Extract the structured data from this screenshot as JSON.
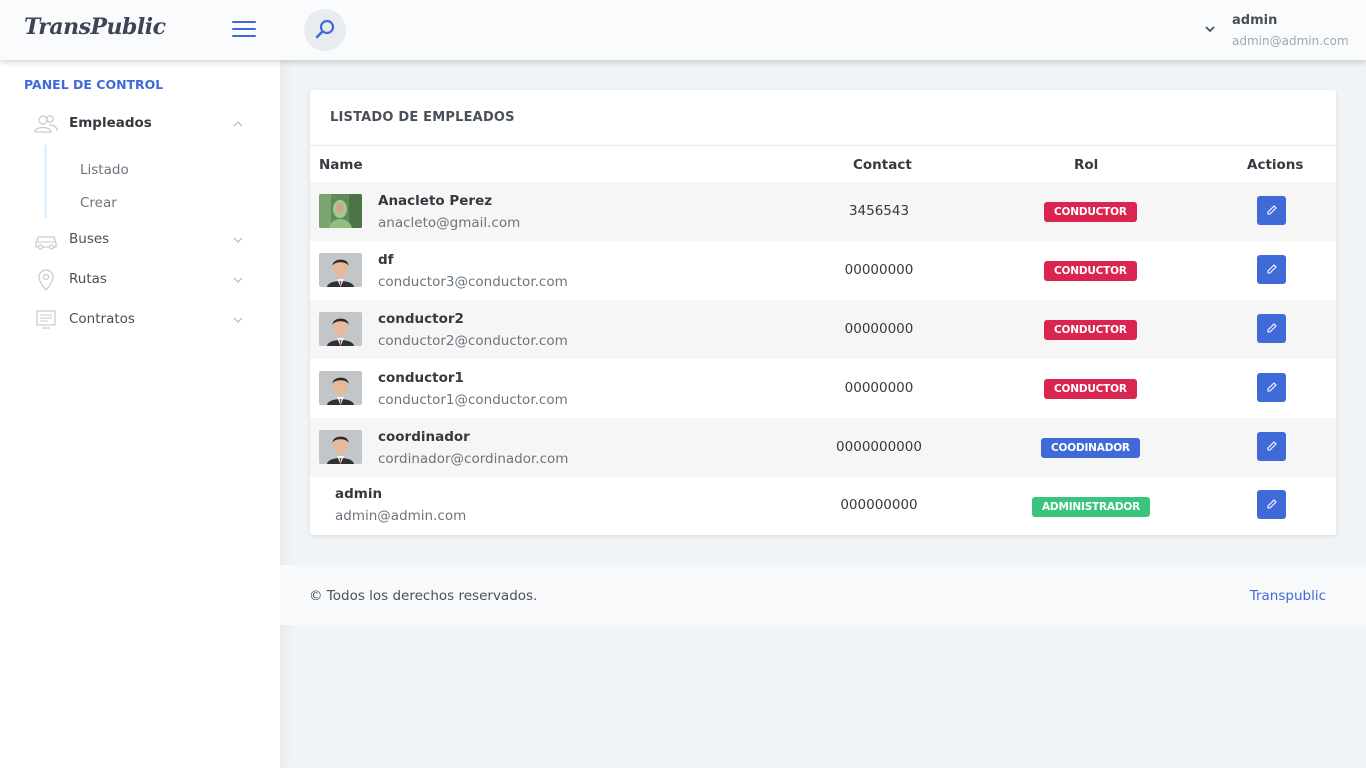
{
  "header": {
    "logo": "TransPublic",
    "user_name": "admin",
    "user_email": "admin@admin.com"
  },
  "sidebar": {
    "panel_title": "PANEL DE CONTROL",
    "items": [
      {
        "label": "Empleados",
        "icon": "users-icon",
        "expanded": true
      },
      {
        "label": "Buses",
        "icon": "car-icon",
        "expanded": false
      },
      {
        "label": "Rutas",
        "icon": "map-pin-icon",
        "expanded": false
      },
      {
        "label": "Contratos",
        "icon": "contract-icon",
        "expanded": false
      }
    ],
    "subitems": [
      "Listado",
      "Crear"
    ]
  },
  "card": {
    "title": "LISTADO DE EMPLEADOS",
    "columns": [
      "Name",
      "Contact",
      "Rol",
      "Actions"
    ],
    "rows": [
      {
        "name": "Anacleto Perez",
        "email": "anacleto@gmail.com",
        "contact": "3456543",
        "rol": "CONDUCTOR",
        "avatar": "photo"
      },
      {
        "name": "df",
        "email": "conductor3@conductor.com",
        "contact": "00000000",
        "rol": "CONDUCTOR",
        "avatar": "cartoon"
      },
      {
        "name": "conductor2",
        "email": "conductor2@conductor.com",
        "contact": "00000000",
        "rol": "CONDUCTOR",
        "avatar": "cartoon"
      },
      {
        "name": "conductor1",
        "email": "conductor1@conductor.com",
        "contact": "00000000",
        "rol": "CONDUCTOR",
        "avatar": "cartoon"
      },
      {
        "name": "coordinador",
        "email": "cordinador@cordinador.com",
        "contact": "0000000000",
        "rol": "COODINADOR",
        "avatar": "cartoon"
      },
      {
        "name": "admin",
        "email": "admin@admin.com",
        "contact": "000000000",
        "rol": "ADMINISTRADOR",
        "avatar": "none"
      }
    ]
  },
  "colors": {
    "primary": "#3f6ad8",
    "danger": "#d92550",
    "success": "#3ac47d"
  },
  "footer": {
    "copyright": "© Todos los derechos reservados.",
    "link": "Transpublic"
  }
}
